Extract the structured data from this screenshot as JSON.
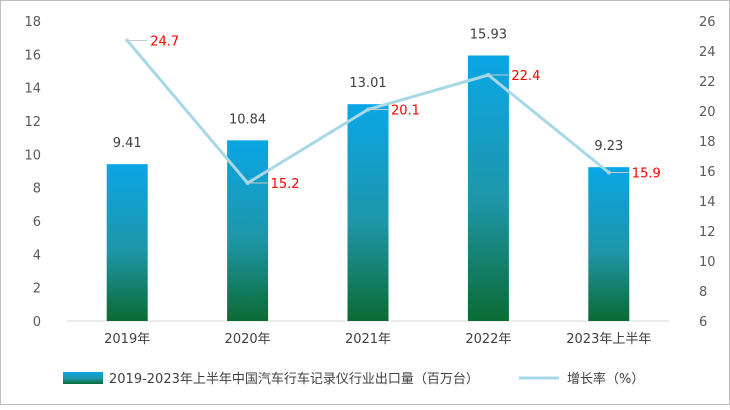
{
  "chart_data": {
    "type": "bar",
    "categories": [
      "2019年",
      "2020年",
      "2021年",
      "2022年",
      "2023年上半年"
    ],
    "series": [
      {
        "name": "2019-2023年上半年中国汽车行车记录仪行业出口量（百万台）",
        "type": "bar",
        "axis": "left",
        "values": [
          9.41,
          10.84,
          13.01,
          15.93,
          9.23
        ],
        "value_labels": [
          "9.41",
          "10.84",
          "13.01",
          "15.93",
          "9.23"
        ]
      },
      {
        "name": "增长率（%）",
        "type": "line",
        "axis": "right",
        "values": [
          24.7,
          15.2,
          20.1,
          22.4,
          15.9
        ],
        "value_labels": [
          "24.7",
          "15.2",
          "20.1",
          "22.4",
          "15.9"
        ]
      }
    ],
    "ylim_left": [
      0,
      18
    ],
    "yticks_left": [
      "0",
      "2",
      "4",
      "6",
      "8",
      "10",
      "12",
      "14",
      "16",
      "18"
    ],
    "ylim_right": [
      6,
      26
    ],
    "yticks_right": [
      "6",
      "8",
      "10",
      "12",
      "14",
      "16",
      "18",
      "20",
      "22",
      "24",
      "26"
    ],
    "grid": false,
    "legend_position": "bottom",
    "colors": {
      "bar_top": "#0aa6e6",
      "bar_bottom": "#0b6b33",
      "line": "#a8d8e8",
      "line_label": "#ff0000",
      "bar_label": "#404040",
      "axis_text": "#595959",
      "axis_line": "#d9d9d9"
    }
  }
}
